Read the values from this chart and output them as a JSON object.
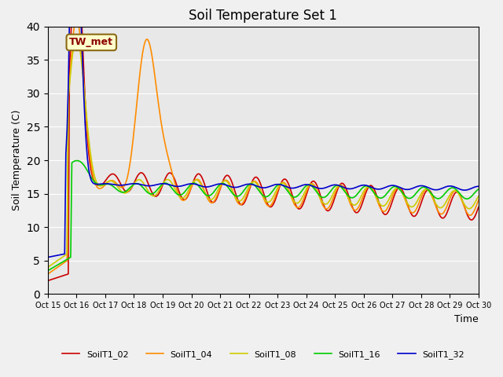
{
  "title": "Soil Temperature Set 1",
  "xlabel": "Time",
  "ylabel": "Soil Temperature (C)",
  "ylim": [
    0,
    40
  ],
  "background_color": "#e8e8e8",
  "fig_facecolor": "#f0f0f0",
  "annotation_text": "TW_met",
  "annotation_color": "#8b0000",
  "annotation_bg": "#ffffcc",
  "series": [
    "SoilT1_02",
    "SoilT1_04",
    "SoilT1_08",
    "SoilT1_16",
    "SoilT1_32"
  ],
  "colors": [
    "#cc0000",
    "#ff8c00",
    "#cccc00",
    "#00cc00",
    "#0000cc"
  ],
  "xtick_labels": [
    "Oct 15",
    "Oct 16",
    "Oct 17",
    "Oct 18",
    "Oct 19",
    "Oct 20",
    "Oct 21",
    "Oct 22",
    "Oct 23",
    "Oct 24",
    "Oct 25",
    "Oct 26",
    "Oct 27",
    "Oct 28",
    "Oct 29",
    "Oct 30"
  ],
  "days": 15,
  "pts_per_day": 24,
  "title_fontsize": 12
}
